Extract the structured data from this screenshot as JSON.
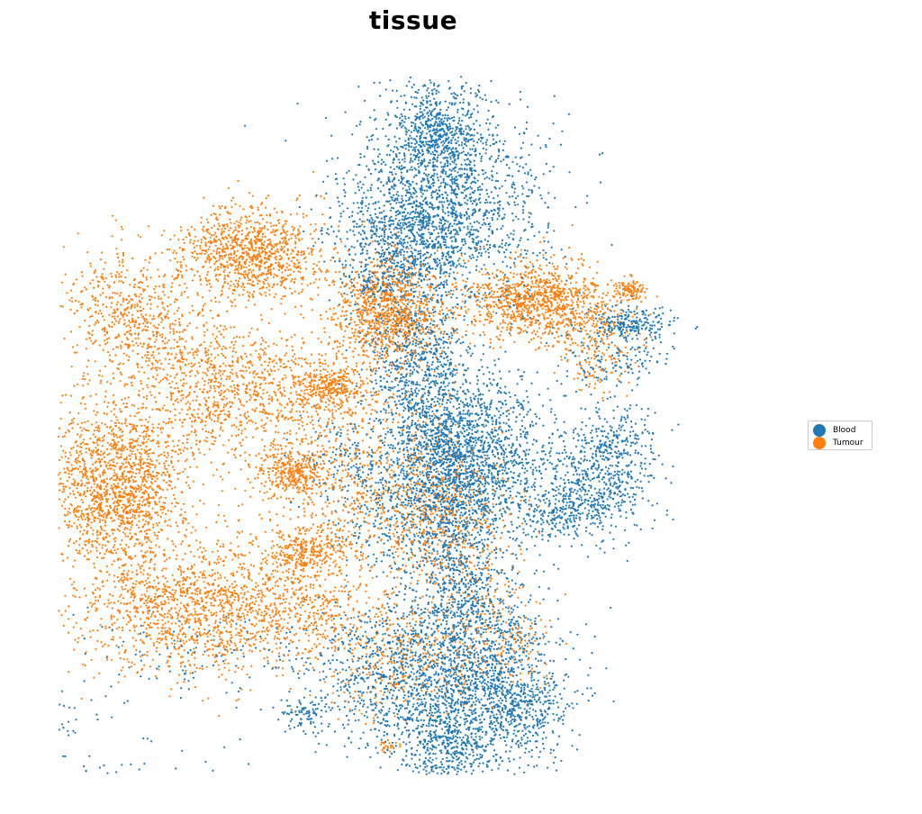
{
  "chart_data": {
    "type": "scatter",
    "title": "tissue",
    "xlabel": "",
    "ylabel": "",
    "axes_visible": false,
    "grid": false,
    "legend_position": "right",
    "series": [
      {
        "name": "Blood",
        "color": "#1f77b4",
        "regions": [
          {
            "x": 0.54,
            "y": 0.78,
            "sx": 0.07,
            "sy": 0.09,
            "w": 10
          },
          {
            "x": 0.53,
            "y": 0.9,
            "sx": 0.03,
            "sy": 0.05,
            "w": 4
          },
          {
            "x": 0.49,
            "y": 0.7,
            "sx": 0.05,
            "sy": 0.05,
            "w": 5
          },
          {
            "x": 0.5,
            "y": 0.48,
            "sx": 0.035,
            "sy": 0.08,
            "w": 5
          },
          {
            "x": 0.57,
            "y": 0.37,
            "sx": 0.05,
            "sy": 0.07,
            "w": 5
          },
          {
            "x": 0.5,
            "y": 0.24,
            "sx": 0.06,
            "sy": 0.07,
            "w": 5
          },
          {
            "x": 0.54,
            "y": 0.3,
            "sx": 0.03,
            "sy": 0.06,
            "w": 3
          },
          {
            "x": 0.61,
            "y": 0.29,
            "sx": 0.05,
            "sy": 0.07,
            "w": 4
          },
          {
            "x": 0.54,
            "y": -0.12,
            "sx": 0.06,
            "sy": 0.08,
            "w": 6
          },
          {
            "x": 0.61,
            "y": -0.09,
            "sx": 0.05,
            "sy": 0.08,
            "w": 5
          },
          {
            "x": 0.45,
            "y": -0.07,
            "sx": 0.06,
            "sy": 0.06,
            "w": 4
          },
          {
            "x": 0.56,
            "y": 0.07,
            "sx": 0.04,
            "sy": 0.08,
            "w": 5
          },
          {
            "x": 0.54,
            "y": -0.2,
            "sx": 0.03,
            "sy": 0.03,
            "w": 1.5
          },
          {
            "x": 0.75,
            "y": 0.27,
            "sx": 0.04,
            "sy": 0.05,
            "w": 3
          },
          {
            "x": 0.71,
            "y": 0.22,
            "sx": 0.03,
            "sy": 0.025,
            "w": 1.5
          },
          {
            "x": 0.78,
            "y": 0.34,
            "sx": 0.03,
            "sy": 0.04,
            "w": 1.5
          },
          {
            "x": 0.8,
            "y": 0.56,
            "sx": 0.03,
            "sy": 0.015,
            "w": 1.5
          },
          {
            "x": 0.34,
            "y": -0.14,
            "sx": 0.015,
            "sy": 0.015,
            "w": 0.5
          },
          {
            "x": 0.78,
            "y": 0.5,
            "sx": 0.04,
            "sy": 0.03,
            "w": 1
          },
          {
            "x": 0.44,
            "y": 0.62,
            "sx": 0.015,
            "sy": 0.012,
            "w": 0.4
          },
          {
            "x": 0.2,
            "y": -0.03,
            "sx": 0.07,
            "sy": 0.04,
            "w": 0.7
          },
          {
            "x": 0.12,
            "y": -0.26,
            "sx": 0.06,
            "sy": 0.04,
            "w": 0.4
          },
          {
            "x": -0.03,
            "y": -0.13,
            "sx": 0.06,
            "sy": 0.03,
            "w": 0.5
          },
          {
            "x": 0.65,
            "y": -0.13,
            "sx": 0.04,
            "sy": 0.04,
            "w": 1.5
          },
          {
            "x": 0.4,
            "y": 0.32,
            "sx": 0.03,
            "sy": 0.03,
            "w": 0.6
          }
        ]
      },
      {
        "name": "Tumour",
        "color": "#ff7f0e",
        "regions": [
          {
            "x": 0.2,
            "y": 0.05,
            "sx": 0.09,
            "sy": 0.06,
            "w": 6
          },
          {
            "x": 0.08,
            "y": 0.27,
            "sx": 0.05,
            "sy": 0.07,
            "w": 6
          },
          {
            "x": 0.27,
            "y": 0.68,
            "sx": 0.05,
            "sy": 0.04,
            "w": 4
          },
          {
            "x": 0.46,
            "y": 0.58,
            "sx": 0.04,
            "sy": 0.05,
            "w": 4
          },
          {
            "x": 0.67,
            "y": 0.6,
            "sx": 0.05,
            "sy": 0.035,
            "w": 4
          },
          {
            "x": 0.33,
            "y": 0.29,
            "sx": 0.025,
            "sy": 0.02,
            "w": 1.2
          },
          {
            "x": 0.38,
            "y": 0.44,
            "sx": 0.025,
            "sy": 0.02,
            "w": 1.2
          },
          {
            "x": 0.4,
            "y": 0.3,
            "sx": 0.08,
            "sy": 0.1,
            "w": 3
          },
          {
            "x": 0.35,
            "y": 0.15,
            "sx": 0.03,
            "sy": 0.02,
            "w": 1
          },
          {
            "x": 0.28,
            "y": 0.44,
            "sx": 0.06,
            "sy": 0.06,
            "w": 2
          },
          {
            "x": 0.18,
            "y": 0.45,
            "sx": 0.06,
            "sy": 0.07,
            "w": 2
          },
          {
            "x": 0.08,
            "y": 0.6,
            "sx": 0.04,
            "sy": 0.05,
            "w": 1
          },
          {
            "x": 0.54,
            "y": 0.2,
            "sx": 0.05,
            "sy": 0.07,
            "w": 2
          },
          {
            "x": 0.48,
            "y": -0.04,
            "sx": 0.05,
            "sy": 0.05,
            "w": 1.2
          },
          {
            "x": 0.61,
            "y": 0.0,
            "sx": 0.04,
            "sy": 0.05,
            "w": 0.8
          },
          {
            "x": 0.8,
            "y": 0.62,
            "sx": 0.01,
            "sy": 0.01,
            "w": 0.4
          },
          {
            "x": 0.12,
            "y": 0.55,
            "sx": 0.04,
            "sy": 0.05,
            "w": 1
          },
          {
            "x": 0.46,
            "y": -0.2,
            "sx": 0.005,
            "sy": 0.005,
            "w": 0.1
          },
          {
            "x": 0.36,
            "y": 0.06,
            "sx": 0.04,
            "sy": 0.05,
            "w": 1
          },
          {
            "x": 0.75,
            "y": 0.52,
            "sx": 0.03,
            "sy": 0.04,
            "w": 0.8
          }
        ]
      }
    ],
    "points_per_series": 11000,
    "xlim": [
      0,
      1
    ],
    "ylim": [
      -0.25,
      1
    ]
  }
}
